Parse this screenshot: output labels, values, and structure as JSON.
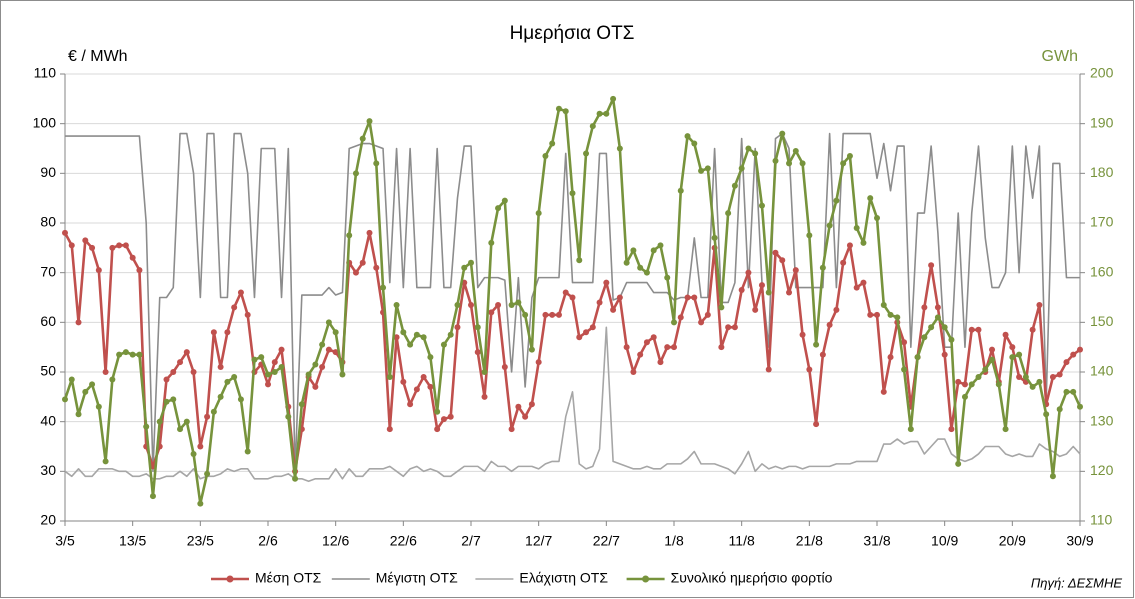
{
  "chart_data": {
    "type": "line",
    "title": "Ημερήσια ΟΤΣ",
    "y_label": "€ / MWh",
    "y2_label": "GWh",
    "y2_color": "#77933c",
    "source": "Πηγή: ΔΕΣΜΗΕ",
    "categories": [
      "3/5",
      null,
      null,
      null,
      null,
      null,
      null,
      null,
      null,
      null,
      "13/5",
      null,
      null,
      null,
      null,
      null,
      null,
      null,
      null,
      null,
      "23/5",
      null,
      null,
      null,
      null,
      null,
      null,
      null,
      null,
      null,
      "2/6",
      null,
      null,
      null,
      null,
      null,
      null,
      null,
      null,
      null,
      "12/6",
      null,
      null,
      null,
      null,
      null,
      null,
      null,
      null,
      null,
      "22/6",
      null,
      null,
      null,
      null,
      null,
      null,
      null,
      null,
      null,
      "2/7",
      null,
      null,
      null,
      null,
      null,
      null,
      null,
      null,
      null,
      "12/7",
      null,
      null,
      null,
      null,
      null,
      null,
      null,
      null,
      null,
      "22/7",
      null,
      null,
      null,
      null,
      null,
      null,
      null,
      null,
      null,
      "1/8",
      null,
      null,
      null,
      null,
      null,
      null,
      null,
      null,
      null,
      "11/8",
      null,
      null,
      null,
      null,
      null,
      null,
      null,
      null,
      null,
      "21/8",
      null,
      null,
      null,
      null,
      null,
      null,
      null,
      null,
      null,
      "31/8",
      null,
      null,
      null,
      null,
      null,
      null,
      null,
      null,
      null,
      "10/9",
      null,
      null,
      null,
      null,
      null,
      null,
      null,
      null,
      null,
      "20/9",
      null,
      null,
      null,
      null,
      null,
      null,
      null,
      null,
      null,
      "30/9"
    ],
    "ylim": [
      20,
      110
    ],
    "yticks": [
      20,
      30,
      40,
      50,
      60,
      70,
      80,
      90,
      100,
      110
    ],
    "y2lim": [
      110,
      200
    ],
    "y2ticks": [
      110,
      120,
      130,
      140,
      150,
      160,
      170,
      180,
      190,
      200
    ],
    "grid": true,
    "legend": "bottom",
    "series": [
      {
        "name": "Μέση ΟΤΣ",
        "color": "#c0504d",
        "marker": true,
        "values": [
          78,
          75.5,
          60,
          76.5,
          75,
          70.5,
          50,
          75,
          75.5,
          75.5,
          73,
          70.5,
          35,
          31,
          35,
          48.5,
          50,
          52,
          54,
          50,
          35,
          41,
          58,
          51,
          58,
          63,
          66,
          61.5,
          50,
          51.5,
          47.5,
          52,
          54.5,
          43,
          30,
          38.5,
          49,
          47,
          51,
          54.5,
          54,
          52,
          72,
          70,
          72,
          78,
          71,
          62,
          38.5,
          57,
          48,
          43.5,
          46.5,
          49,
          47,
          38.5,
          40.5,
          41,
          59,
          68,
          63.5,
          54,
          45,
          62,
          63.5,
          51,
          38.5,
          43,
          41,
          43.5,
          52,
          61.5,
          61.5,
          61.5,
          66,
          65,
          57,
          58,
          59,
          64,
          68,
          62.5,
          65,
          55,
          50,
          53.5,
          56,
          57,
          52,
          55,
          55,
          61,
          65,
          65,
          60,
          61.5,
          75,
          55,
          59,
          59,
          66.5,
          70,
          62.5,
          67.5,
          50.5,
          74,
          72.5,
          66,
          70.5,
          57.5,
          50.5,
          39.5,
          53.5,
          59.5,
          62.5,
          72,
          75.5,
          67,
          68,
          61.5,
          61.5,
          46,
          53,
          60,
          56,
          43,
          53,
          63,
          71.5,
          63,
          53.5,
          38.5,
          48,
          47.5,
          58.5,
          58.5,
          50,
          54.5,
          48,
          57.5,
          55,
          49,
          48,
          58.5,
          63.5,
          43.5,
          49,
          49.5,
          52,
          53.5,
          54.5
        ]
      },
      {
        "name": "Μέγιστη ΟΤΣ",
        "color": "#8c8c8c",
        "marker": false,
        "values": [
          97.5,
          97.5,
          97.5,
          97.5,
          97.5,
          97.5,
          97.5,
          97.5,
          97.5,
          97.5,
          97.5,
          97.5,
          80,
          30,
          65,
          65,
          67,
          98,
          98,
          90,
          65,
          98,
          98,
          65,
          65,
          98,
          98,
          90,
          65,
          95,
          95,
          95,
          65,
          95,
          30,
          65.5,
          65.5,
          65.5,
          65.5,
          67,
          65.5,
          66,
          95,
          95.5,
          96,
          96,
          95.5,
          95,
          68,
          95,
          67,
          95,
          67,
          67,
          67,
          95,
          67,
          67,
          85,
          95.5,
          95.5,
          67,
          69,
          69,
          69,
          68.5,
          50,
          69,
          47,
          65,
          69,
          69,
          69,
          69,
          94,
          68,
          68,
          68,
          68,
          94,
          94,
          64.5,
          65,
          68,
          68,
          68,
          68,
          66,
          66,
          66,
          64.5,
          65,
          65,
          77,
          65,
          65,
          95,
          64,
          64,
          68,
          97,
          67,
          95,
          68,
          55,
          97,
          98,
          95,
          67,
          67,
          67,
          67,
          67,
          98,
          67,
          98,
          98,
          98,
          98,
          98,
          89,
          96,
          86.5,
          95.5,
          95.5,
          55,
          82,
          82,
          95.5,
          78,
          55,
          55,
          82,
          55,
          82,
          95.5,
          77,
          67,
          67,
          70,
          95.5,
          70,
          95.5,
          85,
          95.5,
          44,
          92,
          92,
          69,
          69,
          69
        ]
      },
      {
        "name": "Ελάχιστη ΟΤΣ",
        "color": "#a6a6a6",
        "marker": false,
        "values": [
          30,
          29,
          30.5,
          29,
          29,
          30.5,
          30.5,
          30.5,
          30,
          30,
          29,
          29,
          29.5,
          28.5,
          28.5,
          29,
          29,
          30,
          29,
          30.5,
          28.5,
          29,
          29,
          29.5,
          30.5,
          30,
          30.5,
          30.5,
          28.5,
          28.5,
          28.5,
          29,
          29,
          29.5,
          28.5,
          28.5,
          28,
          28.5,
          28.5,
          28.5,
          30.5,
          28.5,
          30.5,
          29,
          29,
          30.5,
          30.5,
          30.5,
          31,
          30,
          29,
          30.5,
          31,
          30,
          30.5,
          30,
          29,
          29,
          30,
          31,
          31,
          31,
          30,
          32,
          31,
          31,
          30,
          31,
          31,
          31,
          30.5,
          31.5,
          32,
          32,
          41,
          46,
          31.5,
          30.5,
          31,
          34.5,
          59,
          32,
          31.5,
          31,
          30.5,
          30.5,
          31,
          30.5,
          30.5,
          31.5,
          31.5,
          31.5,
          32.5,
          34,
          31.5,
          31.5,
          31.5,
          31,
          30.5,
          29.5,
          31.5,
          34,
          30,
          31.5,
          30.5,
          31,
          30.5,
          31,
          31,
          30.5,
          31,
          31,
          31,
          31,
          31.5,
          31.5,
          31.5,
          32,
          32,
          32,
          32,
          35.5,
          35.5,
          36.5,
          35.5,
          36,
          36,
          33.5,
          35,
          36.5,
          36.5,
          33.5,
          32.5,
          32,
          32.5,
          33.5,
          35,
          35,
          35,
          33.5,
          33,
          33.5,
          33,
          33,
          35.5,
          34.5,
          34,
          33,
          33.5,
          35,
          33.5
        ]
      },
      {
        "name": "Συνολικό ημερήσιο φορτίο",
        "color": "#77933c",
        "marker": true,
        "axis": "y2",
        "values": [
          134.5,
          138.5,
          131.5,
          136,
          137.5,
          133,
          122,
          138.5,
          143.5,
          144,
          143.5,
          143.5,
          129,
          115,
          130,
          134,
          134.5,
          128.5,
          130,
          123.5,
          113.5,
          119.5,
          132,
          135,
          138,
          139,
          134.5,
          124,
          142.5,
          143,
          139.5,
          140,
          141,
          131,
          118.5,
          133.5,
          139.5,
          141.5,
          145.5,
          150,
          148,
          139.5,
          167.5,
          180,
          187,
          190.5,
          182,
          157,
          139,
          153.5,
          148,
          145.5,
          147.5,
          147,
          143,
          132,
          145.5,
          147.5,
          153.5,
          161,
          162,
          149,
          140,
          166,
          173,
          174.5,
          153.5,
          154,
          151.5,
          144.5,
          172,
          183.5,
          186,
          193,
          192.5,
          176,
          162.5,
          184,
          189.5,
          192,
          192,
          195,
          185,
          162,
          164.5,
          161,
          160,
          164.5,
          165.5,
          159,
          150,
          176.5,
          187.5,
          186,
          180.5,
          181,
          167,
          153,
          172,
          177.5,
          181,
          185,
          184,
          173.5,
          156,
          182.5,
          188,
          182,
          184.5,
          182,
          167.5,
          145.5,
          161,
          169.5,
          174.5,
          182,
          183.5,
          169,
          166,
          175,
          171,
          153.5,
          151.5,
          151,
          140.5,
          128.5,
          143,
          147,
          149,
          151,
          149,
          146.5,
          121.5,
          135,
          137.5,
          139,
          140.5,
          142.5,
          137.5,
          128.5,
          143,
          143.5,
          139,
          137,
          138,
          131.5,
          119,
          132.5,
          136,
          136,
          133
        ]
      }
    ]
  }
}
